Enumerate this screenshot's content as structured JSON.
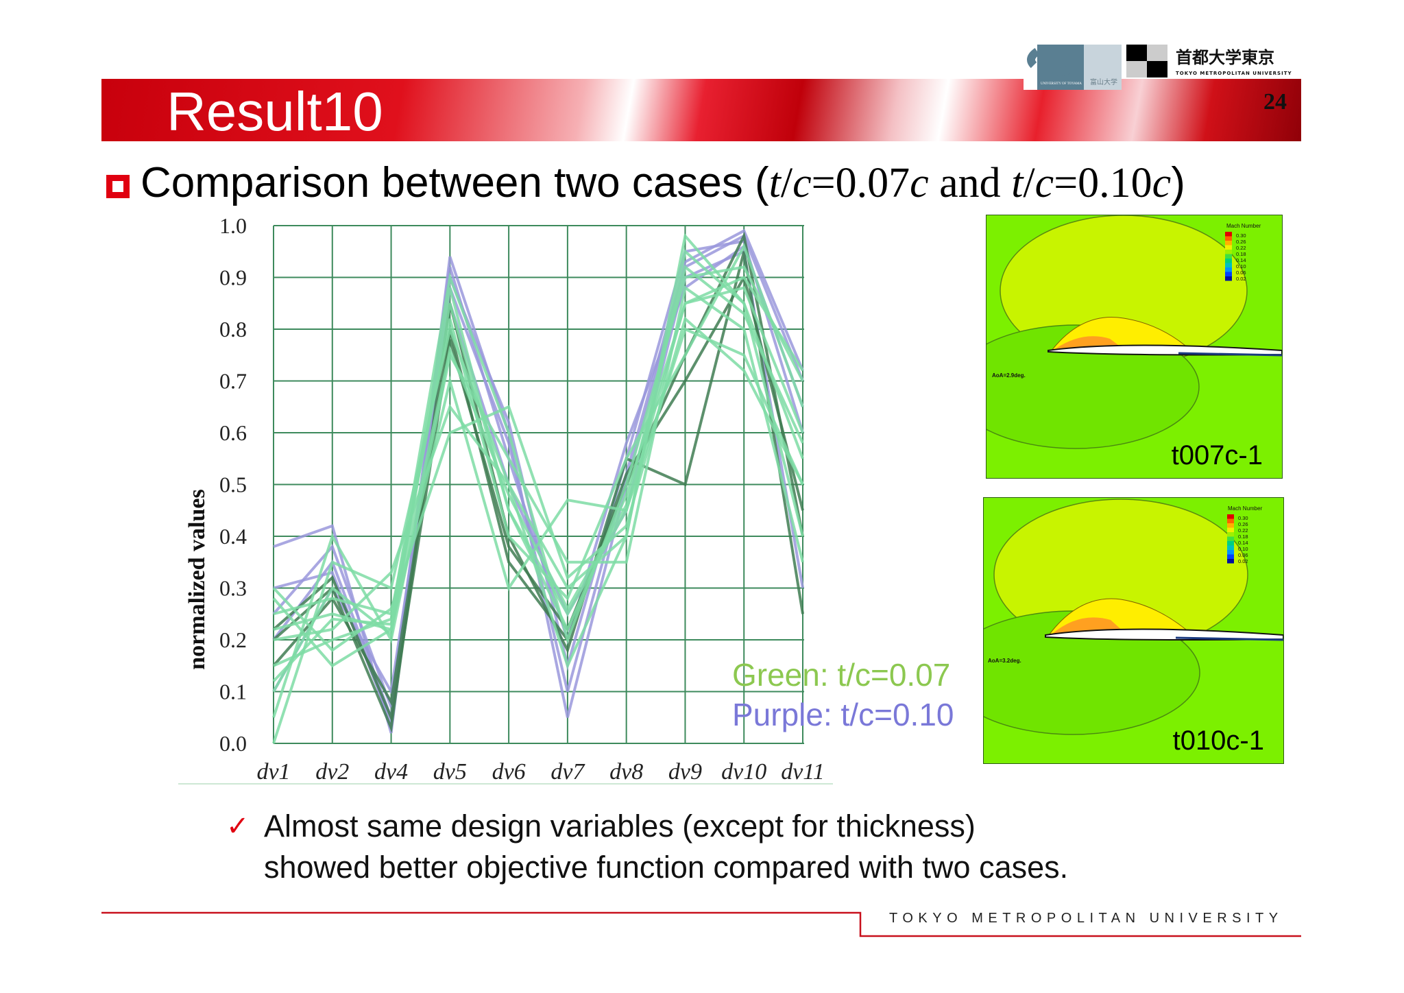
{
  "slide": {
    "title": "Result10",
    "page_number": "24",
    "logos": {
      "toyama_en": "UNIVERSITY OF TOYAMA",
      "toyama_jp": "富山大学",
      "tmu_jp": "首都大学東京",
      "tmu_en": "TOKYO METROPOLITAN UNIVERSITY"
    },
    "subtitle": {
      "prefix": "Comparison between two cases (",
      "tc1_t": "t",
      "tc1_sl": "/",
      "tc1_c": "c",
      "tc1_val": "=0.07",
      "tc1_unit": "c",
      "and": " and ",
      "tc2_t": "t",
      "tc2_sl": "/",
      "tc2_c": "c",
      "tc2_val": "=0.10",
      "tc2_unit": "c",
      "suffix": ")"
    },
    "legend": {
      "green": "Green: t/c=0.07",
      "purple": "Purple: t/c=0.10",
      "green_color": "#8cc850",
      "purple_color": "#7a78d8"
    },
    "panels": [
      {
        "label": "t007c-1",
        "aoa": "AoA=2.9deg.",
        "colorbar_title": "Mach Number",
        "colorbar_ticks": [
          "0.30",
          "0.26",
          "0.22",
          "0.18",
          "0.14",
          "0.10",
          "0.06",
          "0.02"
        ]
      },
      {
        "label": "t010c-1",
        "aoa": "AoA=3.2deg.",
        "colorbar_title": "Mach Number",
        "colorbar_ticks": [
          "0.30",
          "0.26",
          "0.22",
          "0.18",
          "0.14",
          "0.10",
          "0.06",
          "0.02"
        ]
      }
    ],
    "conclusion": {
      "line1": "Almost same design variables (except for thickness)",
      "line2": "showed better objective function compared with two cases."
    },
    "footer": "TOKYO METROPOLITAN UNIVERSITY"
  },
  "chart_data": {
    "type": "line",
    "subtype": "parallel-coordinates",
    "ylabel": "normalized values",
    "ylim": [
      0,
      1
    ],
    "yticks": [
      "0.0",
      "0.1",
      "0.2",
      "0.3",
      "0.4",
      "0.5",
      "0.6",
      "0.7",
      "0.8",
      "0.9",
      "1.0"
    ],
    "categories": [
      "dv1",
      "dv2",
      "dv4",
      "dv5",
      "dv6",
      "dv7",
      "dv8",
      "dv9",
      "dv10",
      "dv11"
    ],
    "grid": true,
    "series_groups": [
      {
        "group": "t/c=0.10",
        "color": "#9a98dc",
        "lines": [
          [
            0.38,
            0.42,
            0.02,
            0.94,
            0.6,
            0.05,
            0.5,
            0.92,
            0.98,
            0.7
          ],
          [
            0.2,
            0.35,
            0.05,
            0.9,
            0.62,
            0.15,
            0.55,
            0.95,
            0.97,
            0.6
          ],
          [
            0.1,
            0.3,
            0.1,
            0.85,
            0.5,
            0.25,
            0.45,
            0.9,
            0.95,
            0.3
          ],
          [
            0.25,
            0.38,
            0.07,
            0.92,
            0.55,
            0.2,
            0.58,
            0.88,
            0.96,
            0.65
          ],
          [
            0.3,
            0.33,
            0.04,
            0.88,
            0.58,
            0.1,
            0.52,
            0.93,
            0.99,
            0.72
          ]
        ]
      },
      {
        "group": "t/c=0.07 (dark)",
        "color": "#3f7d52",
        "lines": [
          [
            0.2,
            0.3,
            0.03,
            0.85,
            0.4,
            0.18,
            0.55,
            0.5,
            0.95,
            0.25
          ],
          [
            0.15,
            0.28,
            0.08,
            0.8,
            0.35,
            0.2,
            0.52,
            0.7,
            0.9,
            0.45
          ],
          [
            0.22,
            0.32,
            0.05,
            0.78,
            0.38,
            0.22,
            0.5,
            0.75,
            0.98,
            0.4
          ]
        ]
      },
      {
        "group": "t/c=0.07",
        "color": "#7edca4",
        "lines": [
          [
            0.22,
            0.25,
            0.22,
            0.85,
            0.45,
            0.25,
            0.45,
            0.85,
            0.88,
            0.6
          ],
          [
            0.0,
            0.35,
            0.3,
            0.8,
            0.5,
            0.3,
            0.4,
            0.95,
            0.85,
            0.4
          ],
          [
            0.15,
            0.2,
            0.24,
            0.9,
            0.6,
            0.2,
            0.5,
            0.9,
            0.92,
            0.7
          ],
          [
            0.28,
            0.15,
            0.22,
            0.7,
            0.3,
            0.47,
            0.45,
            0.8,
            0.75,
            0.5
          ],
          [
            0.05,
            0.4,
            0.2,
            0.75,
            0.55,
            0.35,
            0.35,
            0.88,
            0.8,
            0.35
          ],
          [
            0.2,
            0.22,
            0.33,
            0.65,
            0.5,
            0.15,
            0.4,
            0.98,
            0.85,
            0.55
          ],
          [
            0.25,
            0.28,
            0.25,
            0.82,
            0.4,
            0.28,
            0.55,
            0.75,
            0.96,
            0.65
          ],
          [
            0.1,
            0.3,
            0.21,
            0.88,
            0.45,
            0.22,
            0.48,
            0.85,
            0.9,
            0.72
          ],
          [
            0.3,
            0.18,
            0.26,
            0.6,
            0.65,
            0.32,
            0.42,
            0.82,
            0.72,
            0.5
          ],
          [
            0.12,
            0.24,
            0.23,
            0.76,
            0.48,
            0.26,
            0.46,
            0.92,
            0.83,
            0.58
          ]
        ]
      }
    ]
  }
}
